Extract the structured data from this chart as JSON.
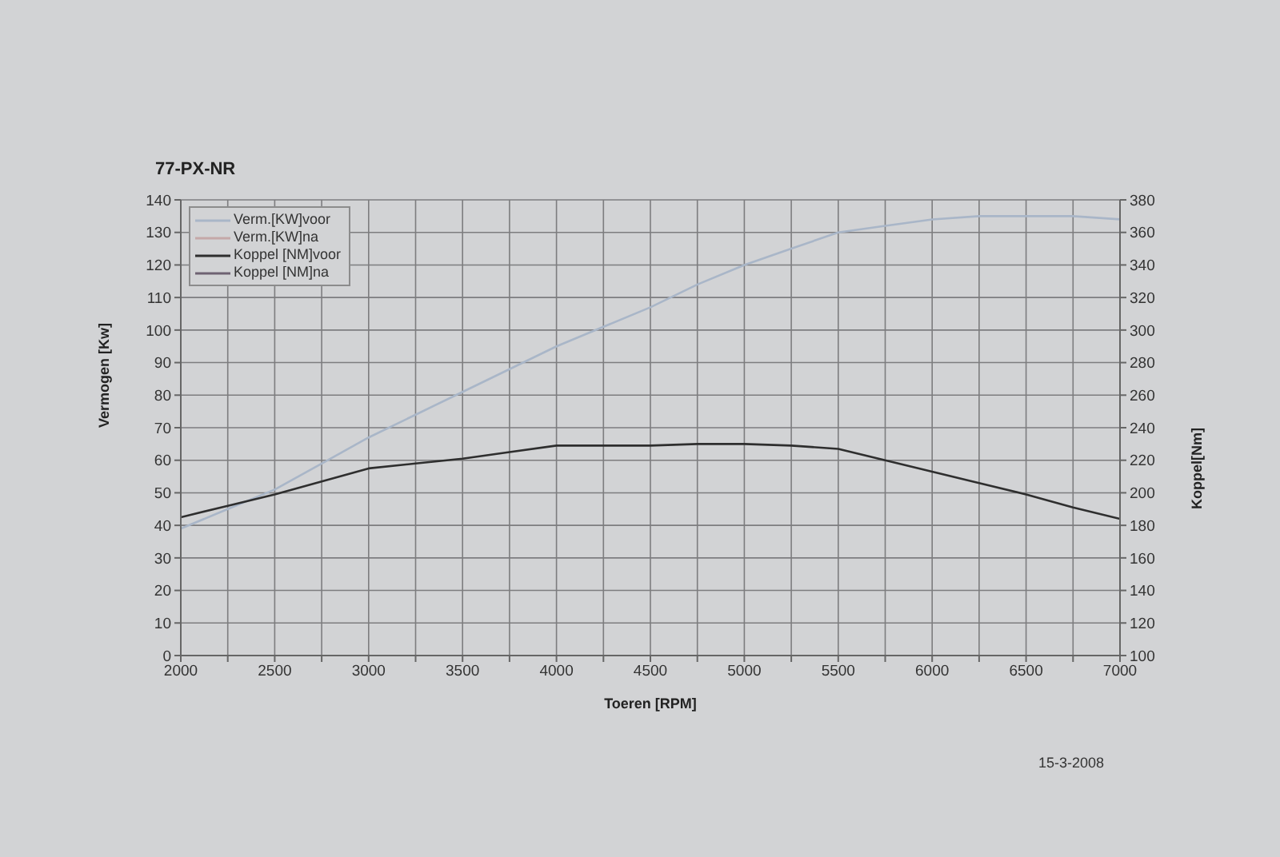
{
  "chart_data": {
    "type": "line",
    "title": "77-PX-NR",
    "xlabel": "Toeren [RPM]",
    "ylabel": "Vermogen [Kw]",
    "y2label": "Koppel[Nm]",
    "x": [
      2000,
      2250,
      2500,
      2750,
      3000,
      3250,
      3500,
      3750,
      4000,
      4250,
      4500,
      4750,
      5000,
      5250,
      5500,
      5750,
      6000,
      6250,
      6500,
      6750,
      7000
    ],
    "series": [
      {
        "name": "Verm.[KW]voor",
        "color": "#a9b6c8",
        "values": [
          39,
          45,
          51,
          59,
          67,
          74,
          81,
          88,
          95,
          101,
          107,
          114,
          120,
          125,
          130,
          132,
          134,
          135,
          135,
          135,
          134
        ]
      },
      {
        "name": "Verm.[KW]na",
        "color": "#c4a8a8",
        "values": [
          null,
          null,
          null,
          null,
          null,
          null,
          null,
          null,
          null,
          null,
          null,
          null,
          null,
          null,
          null,
          null,
          null,
          null,
          null,
          null,
          null
        ]
      },
      {
        "name": "Koppel [NM]voor",
        "color": "#2e2e2e",
        "axis": "y2",
        "values": [
          185,
          192,
          199,
          207,
          215,
          218,
          221,
          225,
          229,
          229,
          229,
          230,
          230,
          229,
          227,
          220,
          213,
          206,
          199,
          191,
          184
        ]
      },
      {
        "name": "Koppel [NM]na",
        "color": "#6e6272",
        "axis": "y2",
        "values": [
          null,
          null,
          null,
          null,
          null,
          null,
          null,
          null,
          null,
          null,
          null,
          null,
          null,
          null,
          null,
          null,
          null,
          null,
          null,
          null,
          null
        ]
      }
    ],
    "xlim": [
      2000,
      7000
    ],
    "xticks": [
      2000,
      {
        "value": 2250,
        "label": null
      },
      2500,
      {
        "value": 2750,
        "label": null
      },
      3000,
      {
        "value": 3250,
        "label": null
      },
      3500,
      {
        "value": 3750,
        "label": null
      },
      4000,
      {
        "value": 4250,
        "label": null
      },
      4500,
      {
        "value": 4750,
        "label": null
      },
      5000,
      {
        "value": 5250,
        "label": null
      },
      5500,
      {
        "value": 5750,
        "label": null
      },
      6000,
      {
        "value": 6250,
        "label": null
      },
      6500,
      {
        "value": 6750,
        "label": null
      },
      7000
    ],
    "ylim": [
      0,
      140
    ],
    "yticks": [
      0,
      10,
      20,
      30,
      40,
      50,
      60,
      70,
      80,
      90,
      100,
      110,
      120,
      130,
      140
    ],
    "y2lim": [
      100,
      380
    ],
    "y2ticks": [
      100,
      120,
      140,
      160,
      180,
      200,
      220,
      240,
      260,
      280,
      300,
      320,
      340,
      360,
      380
    ],
    "grid": true,
    "legend": "top left",
    "marker": "none",
    "line_style": "solid",
    "annotations": [
      "15-3-2008"
    ]
  }
}
